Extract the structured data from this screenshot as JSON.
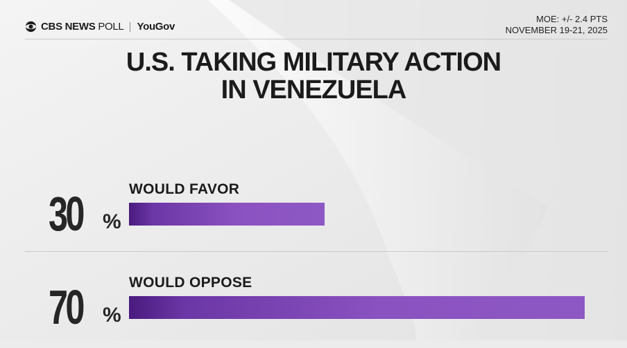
{
  "header": {
    "brand": "CBS NEWS",
    "poll": "POLL",
    "partner": "YouGov",
    "moe": "MOE: +/- 2.4 PTS",
    "dates": "NOVEMBER 19-21, 2025"
  },
  "title_line1": "U.S. TAKING MILITARY ACTION",
  "title_line2": "IN VENEZUELA",
  "colors": {
    "bar": "#8a52c0",
    "bar_dark": "#4a1b7e",
    "text": "#1b1b1b"
  },
  "chart_data": {
    "type": "bar",
    "orientation": "horizontal",
    "title": "U.S. TAKING MILITARY ACTION IN VENEZUELA",
    "categories": [
      "WOULD FAVOR",
      "WOULD OPPOSE"
    ],
    "values": [
      30,
      70
    ],
    "value_labels": [
      "30",
      "70"
    ],
    "unit": "%",
    "xlim": [
      0,
      70
    ],
    "grid": false,
    "legend": "none"
  }
}
